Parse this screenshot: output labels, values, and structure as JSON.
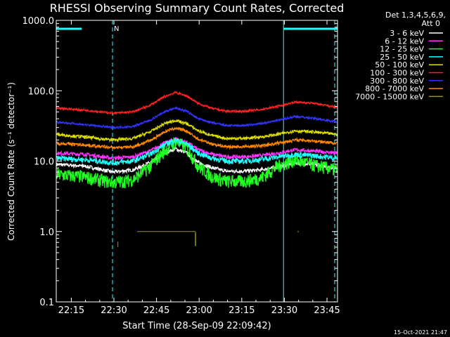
{
  "chart_data": {
    "type": "line",
    "title": "RHESSI Observing Summary Count Rates, Corrected",
    "xlabel": "Start Time (28-Sep-09 22:09:42)",
    "ylabel": "Corrected Count Rate (s⁻¹ detector⁻¹)",
    "yscale": "log",
    "ylim": [
      0.1,
      1000
    ],
    "xlim_min": [
      0,
      99
    ],
    "x_ticks": [
      {
        "label": "22:15",
        "min": 5.3
      },
      {
        "label": "22:30",
        "min": 20.3
      },
      {
        "label": "22:45",
        "min": 35.3
      },
      {
        "label": "23:00",
        "min": 50.3
      },
      {
        "label": "23:15",
        "min": 65.3
      },
      {
        "label": "23:30",
        "min": 80.3
      },
      {
        "label": "23:45",
        "min": 95.3
      }
    ],
    "y_ticks": [
      {
        "label": "0.1",
        "value": 0.1
      },
      {
        "label": "1.0",
        "value": 1
      },
      {
        "label": "10.0",
        "value": 10
      },
      {
        "label": "100.0",
        "value": 100
      },
      {
        "label": "1000.0",
        "value": 1000
      }
    ],
    "legend_header": [
      "Det 1,3,4,5,6,9,",
      "Att 0"
    ],
    "series": [
      {
        "name": "3 - 6 keV",
        "color": "#ffffff",
        "x": [
          0,
          10,
          20,
          27,
          33,
          38,
          42,
          46,
          50,
          55,
          60,
          66,
          72,
          78,
          84,
          90,
          99
        ],
        "y": [
          9,
          8.5,
          7,
          7.5,
          9.5,
          13,
          15,
          13,
          9.5,
          8,
          7.2,
          7.2,
          7.5,
          8.2,
          9.5,
          9,
          8
        ]
      },
      {
        "name": "6 - 12 keV",
        "color": "#ff33ff",
        "x": [
          0,
          10,
          20,
          27,
          33,
          38,
          42,
          46,
          50,
          55,
          60,
          66,
          72,
          78,
          84,
          90,
          99
        ],
        "y": [
          13,
          12.5,
          11,
          11.5,
          14,
          18,
          21,
          18.5,
          14.5,
          12.5,
          11.5,
          11.5,
          12,
          13,
          14.5,
          14,
          13
        ]
      },
      {
        "name": "12 - 25 keV",
        "color": "#22ff22",
        "x": [
          0,
          10,
          20,
          27,
          33,
          38,
          42,
          46,
          50,
          55,
          60,
          66,
          72,
          78,
          84,
          90,
          99
        ],
        "y": [
          6.5,
          6,
          5,
          5.5,
          8.5,
          14,
          19,
          15.5,
          8.5,
          6,
          5.2,
          5.2,
          5.8,
          8.5,
          10.5,
          9,
          7.5
        ]
      },
      {
        "name": "25 - 50 keV",
        "color": "#22ffff",
        "x": [
          0,
          10,
          20,
          27,
          33,
          38,
          42,
          46,
          50,
          55,
          60,
          66,
          72,
          78,
          84,
          90,
          99
        ],
        "y": [
          11,
          10.5,
          9.5,
          10,
          12.5,
          17,
          20,
          17.5,
          13,
          11,
          10,
          10,
          10.5,
          11.5,
          12.5,
          12,
          11
        ]
      },
      {
        "name": "50 - 100 keV",
        "color": "#dddd00",
        "x": [
          0,
          10,
          20,
          27,
          33,
          38,
          42,
          46,
          50,
          55,
          60,
          66,
          72,
          78,
          84,
          90,
          99
        ],
        "y": [
          24,
          22,
          20,
          21,
          26,
          34,
          38,
          34,
          27,
          23,
          21,
          21,
          22,
          24,
          27,
          26,
          24
        ]
      },
      {
        "name": "100 - 300 keV",
        "color": "#ff2222",
        "x": [
          0,
          10,
          20,
          27,
          33,
          38,
          42,
          46,
          50,
          55,
          60,
          66,
          72,
          78,
          84,
          90,
          99
        ],
        "y": [
          57,
          53,
          48,
          50,
          62,
          82,
          95,
          84,
          66,
          56,
          51,
          51,
          54,
          60,
          69,
          67,
          58
        ]
      },
      {
        "name": "300 - 800 keV",
        "color": "#3333ff",
        "x": [
          0,
          10,
          20,
          27,
          33,
          38,
          42,
          46,
          50,
          55,
          60,
          66,
          72,
          78,
          84,
          90,
          99
        ],
        "y": [
          36,
          33,
          30,
          31,
          38,
          50,
          57,
          51,
          40,
          35,
          32,
          32,
          34,
          38,
          43,
          41,
          36
        ]
      },
      {
        "name": "800 - 7000 keV",
        "color": "#ff8800",
        "x": [
          0,
          10,
          20,
          27,
          33,
          38,
          42,
          46,
          50,
          55,
          60,
          66,
          72,
          78,
          84,
          90,
          99
        ],
        "y": [
          18,
          17,
          15.5,
          16,
          19.5,
          26,
          29.5,
          26.5,
          20.5,
          17.5,
          16,
          16,
          16.5,
          18,
          20,
          19.5,
          18
        ]
      },
      {
        "name": "7000 - 15000 keV",
        "color": "#999900",
        "x": [
          21.7,
          26.5,
          28.5,
          32.5,
          34,
          37,
          38,
          45,
          45.5,
          49,
          70,
          81,
          85,
          85.3
        ],
        "y": [
          1,
          1,
          1,
          1,
          1,
          1,
          1,
          1,
          1,
          1,
          1,
          1,
          1,
          1
        ]
      }
    ],
    "annotations": {
      "top_bars": [
        {
          "label": "",
          "start_min": 0,
          "end_min": 9
        },
        {
          "label": "",
          "start_min": 80,
          "end_min": 99
        }
      ],
      "bar_marker": "N",
      "dashed_lines_min": [
        19.8,
        98
      ],
      "solid_lines_min": [
        0,
        80
      ]
    },
    "footer_date": "15-Oct-2021 21:47"
  }
}
